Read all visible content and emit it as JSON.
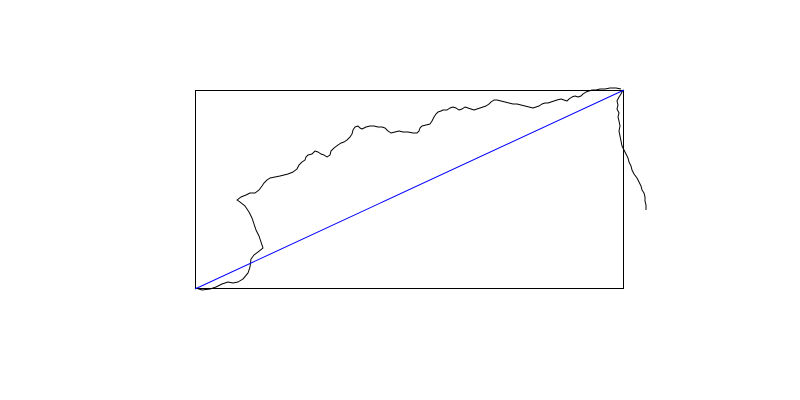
{
  "map": {
    "colors": {
      "background": "#ffffff",
      "frame": "#000000",
      "coastline": "#000000",
      "route": "#0000ff"
    },
    "elements": [
      "map-frame",
      "coastline",
      "route-line"
    ]
  }
}
